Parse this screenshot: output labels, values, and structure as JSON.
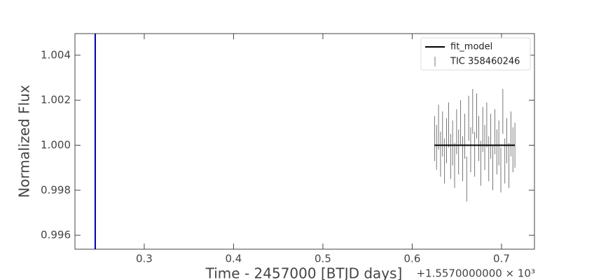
{
  "chart_data": {
    "type": "errorbar",
    "xlabel": "Time - 2457000 [BTJD days]",
    "ylabel": "Normalized Flux",
    "x_offset_label": "+1.5570000000 × 10³",
    "xlim": [
      0.2224,
      0.7369
    ],
    "ylim": [
      0.99538,
      1.00496
    ],
    "xticks": [
      0.3,
      0.4,
      0.5,
      0.6,
      0.7
    ],
    "yticks": [
      0.996,
      0.998,
      {
        "value": 1,
        "label": "1.000"
      },
      1.002,
      1.004
    ],
    "vline": {
      "x": 0.2451,
      "color": "#0000aa"
    },
    "legend": "upper right",
    "series": [
      {
        "name": "fit_model",
        "kind": "line",
        "color": "#000000",
        "x": [
          0.625,
          0.715
        ],
        "values": [
          1,
          1
        ]
      },
      {
        "name": "TIC 358460246",
        "kind": "errorbar",
        "color": "#555555",
        "x": [
          0.625,
          0.62725,
          0.6295,
          0.63175,
          0.634,
          0.63625,
          0.6385,
          0.64075,
          0.643,
          0.64525,
          0.6475,
          0.64975,
          0.652,
          0.65425,
          0.6565,
          0.65875,
          0.661,
          0.66325,
          0.6655,
          0.66775,
          0.67,
          0.67225,
          0.6745,
          0.67675,
          0.679,
          0.68125,
          0.6835,
          0.68575,
          0.688,
          0.69025,
          0.6925,
          0.69475,
          0.697,
          0.69925,
          0.7015,
          0.70375,
          0.706,
          0.70825,
          0.7105,
          0.71275,
          0.715
        ],
        "values": [
          1.0003,
          0.9999,
          1.0008,
          0.9996,
          1.0005,
          0.9993,
          1.0002,
          1.0009,
          0.9995,
          1.0001,
          0.9991,
          1.0006,
          0.9997,
          1.001,
          0.9994,
          1.0004,
          0.9985,
          1.0012,
          0.9998,
          1.0015,
          0.9996,
          1.0013,
          1.0003,
          0.9992,
          1.0007,
          0.9999,
          1.0009,
          0.9994,
          1.0004,
          0.999,
          1.0006,
          0.9997,
          1.0001,
          0.9989,
          1.0015,
          0.9993,
          1.0002,
          0.9991,
          1.0005,
          0.9998,
          1
        ],
        "errors": [
          0.001,
          0.001,
          0.001,
          0.001,
          0.001,
          0.001,
          0.001,
          0.001,
          0.001,
          0.001,
          0.001,
          0.001,
          0.001,
          0.001,
          0.001,
          0.001,
          0.001,
          0.001,
          0.001,
          0.001,
          0.001,
          0.001,
          0.001,
          0.001,
          0.001,
          0.001,
          0.001,
          0.001,
          0.001,
          0.001,
          0.001,
          0.001,
          0.001,
          0.001,
          0.001,
          0.001,
          0.001,
          0.001,
          0.001,
          0.001,
          0.001
        ]
      }
    ]
  }
}
